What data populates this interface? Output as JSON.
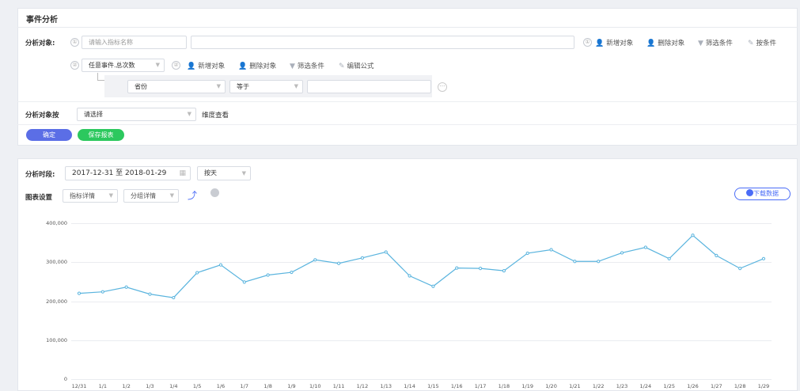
{
  "header": {
    "title": "事件分析"
  },
  "analysis": {
    "object_label": "分析对象:",
    "row1": {
      "num": "①",
      "metric_placeholder": "请输入指标名称",
      "actions": [
        "新增对象",
        "删除对象",
        "筛选条件",
        "按条件"
      ]
    },
    "row2": {
      "num": "②",
      "event_select": "任意事件.总次数",
      "actions": [
        "新增对象",
        "删除对象",
        "筛选条件",
        "编辑公式"
      ]
    },
    "filter": {
      "field": "省份",
      "operator": "等于",
      "value": "",
      "more": "···"
    },
    "group_by_label": "分析对象按",
    "group_by_select": "请选择",
    "dimension_label": "维度查看",
    "confirm_button": "确定",
    "save_button": "保存报表"
  },
  "chart_panel": {
    "period_label": "分析时段:",
    "date_range": "2017-12-31 至 2018-01-29",
    "granularity": "按天",
    "settings_label": "图表设置",
    "metric_detail": "指标详情",
    "group_detail": "分组详情",
    "download_button": "下载数据"
  },
  "chart_data": {
    "type": "line",
    "title": "",
    "xlabel": "",
    "ylabel": "",
    "ylim": [
      0,
      400000
    ],
    "yticks": [
      "400,000",
      "300,000",
      "200,000",
      "100,000",
      "0"
    ],
    "categories": [
      "12/31",
      "1/1",
      "1/2",
      "1/3",
      "1/4",
      "1/5",
      "1/6",
      "1/7",
      "1/8",
      "1/9",
      "1/10",
      "1/11",
      "1/12",
      "1/13",
      "1/14",
      "1/15",
      "1/16",
      "1/17",
      "1/18",
      "1/19",
      "1/20",
      "1/21",
      "1/22",
      "1/23",
      "1/24",
      "1/25",
      "1/26",
      "1/27",
      "1/28",
      "1/29"
    ],
    "series": [
      {
        "values": [
          220000,
          224000,
          236000,
          218000,
          209000,
          273000,
          293000,
          249000,
          267000,
          274000,
          306000,
          297000,
          311000,
          326000,
          265000,
          238000,
          285000,
          284000,
          278000,
          323000,
          332000,
          302000,
          302000,
          324000,
          338000,
          309000,
          369000,
          317000,
          284000,
          309000
        ]
      }
    ],
    "line_color": "#5ab4de",
    "grid": true
  }
}
